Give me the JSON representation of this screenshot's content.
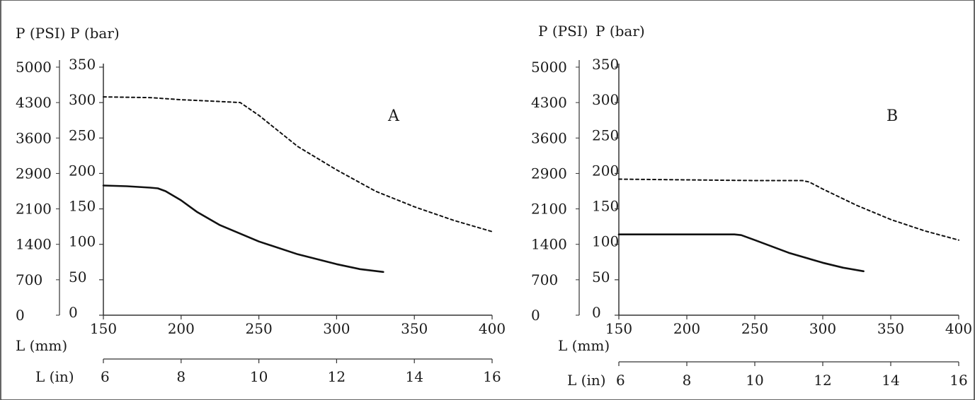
{
  "chart_data": [
    {
      "type": "line",
      "panel_label": "A",
      "left_axis_title": "P (PSI)",
      "right_axis_title": "P (bar)",
      "psi_ticks": [
        "5000",
        "4300",
        "3600",
        "2900",
        "2100",
        "1400",
        "700",
        "0"
      ],
      "bar_ticks": [
        "350",
        "300",
        "250",
        "200",
        "150",
        "100",
        "50",
        "0"
      ],
      "ylim": [
        0,
        350
      ],
      "x_mm_title": "L (mm)",
      "x_mm_ticks": [
        150,
        200,
        250,
        300,
        350,
        400
      ],
      "x_in_title": "L (in)",
      "x_in_ticks": [
        6,
        8,
        10,
        12,
        14,
        16
      ],
      "xlim": [
        150,
        400
      ],
      "series": [
        {
          "style": "dashed",
          "x": [
            150,
            180,
            200,
            220,
            238,
            250,
            275,
            300,
            325,
            350,
            375,
            400
          ],
          "y": [
            308,
            307,
            304,
            302,
            300,
            282,
            238,
            205,
            175,
            153,
            134,
            118
          ]
        },
        {
          "style": "solid",
          "x": [
            150,
            165,
            180,
            185,
            190,
            200,
            210,
            225,
            250,
            275,
            300,
            315,
            330
          ],
          "y": [
            183,
            182,
            180,
            179,
            175,
            162,
            146,
            127,
            104,
            86,
            72,
            65,
            61
          ]
        }
      ]
    },
    {
      "type": "line",
      "panel_label": "B",
      "left_axis_title": "P (PSI)",
      "right_axis_title": "P (bar)",
      "psi_ticks": [
        "5000",
        "4300",
        "3600",
        "2900",
        "2100",
        "1400",
        "700",
        "0"
      ],
      "bar_ticks": [
        "350",
        "300",
        "250",
        "200",
        "150",
        "100",
        "50",
        "0"
      ],
      "ylim": [
        0,
        350
      ],
      "x_mm_title": "L (mm)",
      "x_mm_ticks": [
        150,
        200,
        250,
        300,
        350,
        400
      ],
      "x_in_title": "L (in)",
      "x_in_ticks": [
        6,
        8,
        10,
        12,
        14,
        16
      ],
      "xlim": [
        150,
        400
      ],
      "series": [
        {
          "style": "dashed",
          "x": [
            150,
            200,
            250,
            285,
            290,
            300,
            325,
            350,
            375,
            400
          ],
          "y": [
            192,
            191,
            190,
            190,
            188,
            178,
            155,
            135,
            119,
            106
          ]
        },
        {
          "style": "solid",
          "x": [
            150,
            200,
            235,
            240,
            250,
            275,
            300,
            315,
            330
          ],
          "y": [
            114,
            114,
            114,
            113,
            106,
            88,
            74,
            67,
            62
          ]
        }
      ]
    }
  ]
}
